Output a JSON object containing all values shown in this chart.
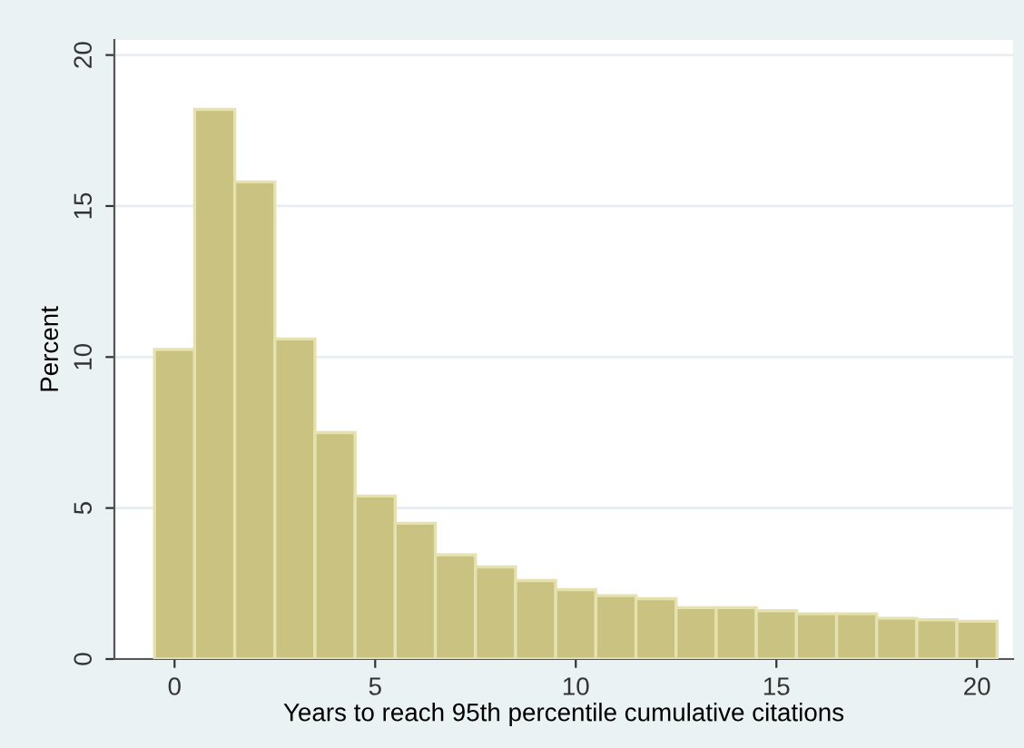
{
  "chart_data": {
    "type": "histogram",
    "xlabel": "Years to reach 95th percentile cumulative citations",
    "ylabel": "Percent",
    "bins": [
      -0.5,
      0.5,
      1.5,
      2.5,
      3.5,
      4.5,
      5.5,
      6.5,
      7.5,
      8.5,
      9.5,
      10.5,
      11.5,
      12.5,
      13.5,
      14.5,
      15.5,
      16.5,
      17.5,
      18.5,
      19.5,
      20.5
    ],
    "values": [
      10.25,
      18.2,
      15.8,
      10.6,
      7.5,
      5.4,
      4.5,
      3.45,
      3.05,
      2.6,
      2.3,
      2.1,
      2.0,
      1.7,
      1.7,
      1.6,
      1.5,
      1.5,
      1.35,
      1.3,
      1.25
    ],
    "color": "#c9c281",
    "xlim": [
      -1.5,
      20.9
    ],
    "ylim": [
      0,
      20.5
    ],
    "xticks": [
      0,
      5,
      10,
      15,
      20
    ],
    "yticks": [
      0,
      5,
      10,
      15,
      20
    ],
    "grid": "y"
  }
}
